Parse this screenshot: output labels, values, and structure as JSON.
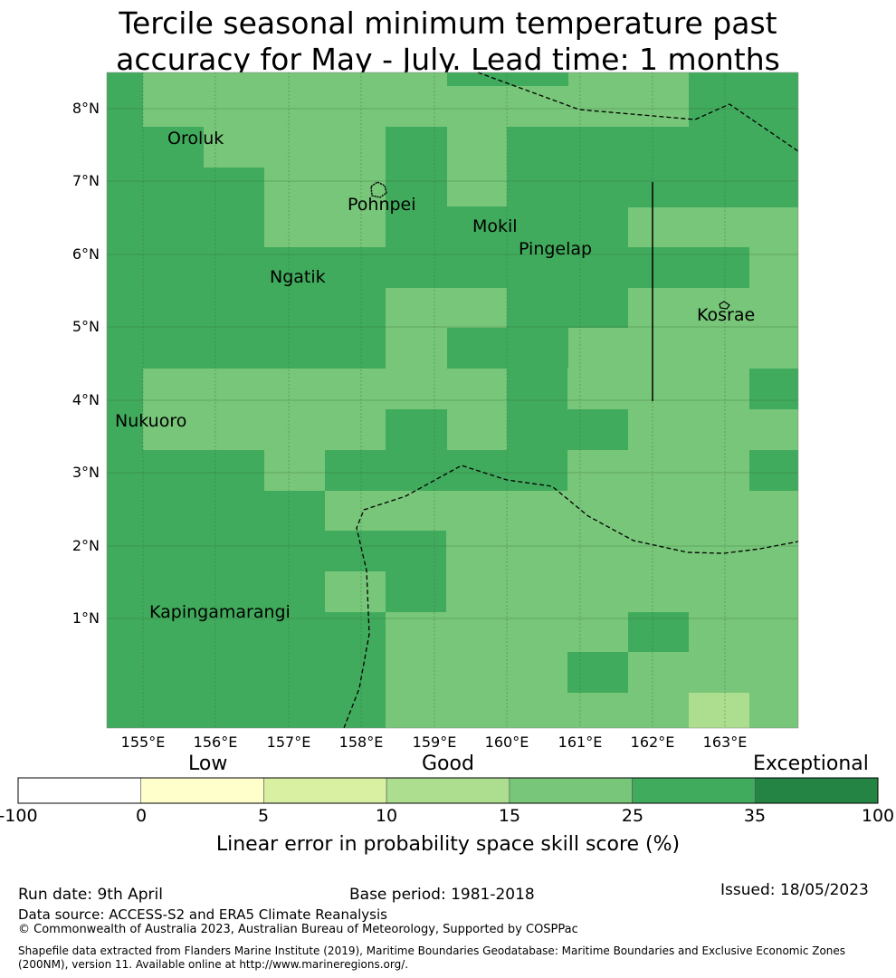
{
  "title": {
    "line1": "Tercile seasonal minimum temperature past",
    "line2": "accuracy for May - July. Lead time: 1 months"
  },
  "map": {
    "lat_labels": [
      "8°N",
      "7°N",
      "6°N",
      "5°N",
      "4°N",
      "3°N",
      "2°N",
      "1°N"
    ],
    "lon_labels": [
      "155°E",
      "156°E",
      "157°E",
      "158°E",
      "159°E",
      "160°E",
      "161°E",
      "162°E",
      "163°E"
    ],
    "places": [
      "Oroluk",
      "Pohnpei",
      "Mokil",
      "Pingelap",
      "Ngatik",
      "Kosrae",
      "Nukuoro",
      "Kapingamarangi"
    ],
    "colors": {
      "c15_25": "#78c679",
      "c25_35": "#41ab5d",
      "c10_15": "#addd8e"
    }
  },
  "colorbar": {
    "categories": [
      "Low",
      "Good",
      "Exceptional"
    ],
    "ticks": [
      "-100",
      "0",
      "5",
      "10",
      "15",
      "25",
      "35",
      "100"
    ],
    "colors": [
      "#ffffff",
      "#ffffcc",
      "#d9f0a3",
      "#addd8e",
      "#78c679",
      "#41ab5d",
      "#238443"
    ],
    "label": "Linear error in probability space skill score (%)"
  },
  "footer": {
    "run_date": "Run date: 9th April",
    "base_period": "Base period: 1981-2018",
    "issued": "Issued: 18/05/2023",
    "data_source": "Data source: ACCESS-S2 and ERA5 Climate Reanalysis",
    "copyright": "© Commonwealth of Australia 2023, Australian Bureau of Meteorology, Supported by COSPPac",
    "shapefile_line1": "Shapefile data extracted from Flanders Marine Institute (2019), Maritime Boundaries Geodatabase: Maritime Boundaries and Exclusive Economic Zones",
    "shapefile_line2": "(200NM), version 11. Available online at http://www.marineregions.org/."
  }
}
